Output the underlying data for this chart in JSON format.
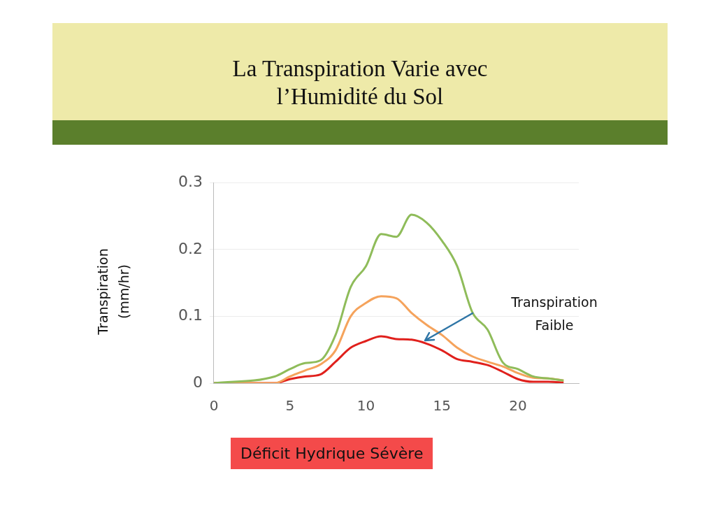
{
  "chart_data": {
    "type": "line",
    "title": "La Transpiration Varie avec\nl’Humidité du Sol",
    "ylabel": "Transpiration\n(mm/hr)",
    "x": [
      0,
      4,
      5,
      6,
      7,
      8,
      9,
      10,
      11,
      12,
      13,
      14,
      15,
      16,
      17,
      18,
      19,
      20,
      21,
      22,
      23
    ],
    "series": [
      {
        "color": "#8fbc5a",
        "values": [
          0,
          0.01,
          0.021,
          0.03,
          0.034,
          0.072,
          0.144,
          0.175,
          0.223,
          0.219,
          0.252,
          0.24,
          0.213,
          0.175,
          0.106,
          0.08,
          0.031,
          0.021,
          0.01,
          0.007,
          0.004
        ]
      },
      {
        "color": "#f5a35c",
        "values": [
          0,
          0,
          0.01,
          0.019,
          0.028,
          0.049,
          0.1,
          0.12,
          0.13,
          0.127,
          0.105,
          0.087,
          0.072,
          0.053,
          0.04,
          0.032,
          0.025,
          0.015,
          0.008,
          0.007,
          0.004
        ]
      },
      {
        "color": "#e0201c",
        "values": [
          0,
          0,
          0.006,
          0.01,
          0.013,
          0.032,
          0.053,
          0.063,
          0.07,
          0.066,
          0.065,
          0.059,
          0.049,
          0.036,
          0.032,
          0.027,
          0.017,
          0.006,
          0.002,
          0.002,
          0.001
        ]
      }
    ],
    "xlim": [
      0,
      24
    ],
    "xticks": [
      0,
      5,
      10,
      15,
      20
    ],
    "ylim": [
      0,
      0.3
    ],
    "yticks": [
      0,
      0.1,
      0.2,
      0.3
    ],
    "grid": "y",
    "legend": false,
    "marker": "none",
    "line_style": "solid",
    "annotations": [
      "Transpiration\nFaible",
      "Déficit Hydrique Sévère"
    ]
  }
}
